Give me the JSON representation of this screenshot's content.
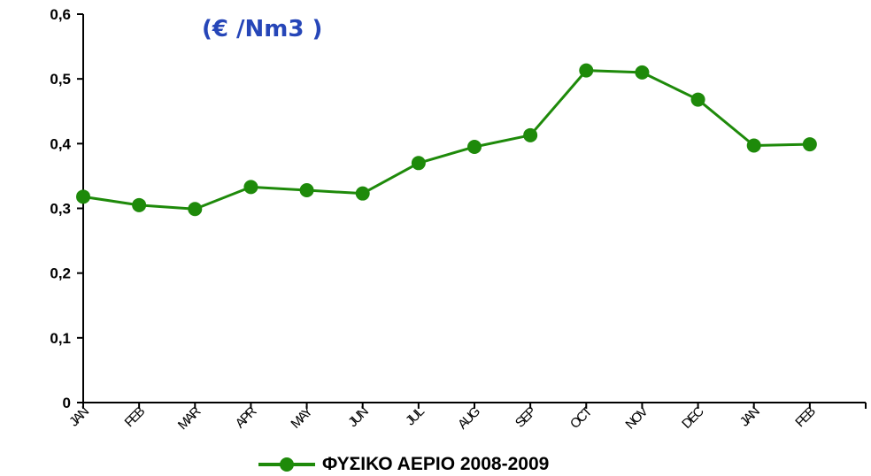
{
  "chart_data": {
    "type": "line",
    "title": "(€ /Nm3 )",
    "categories": [
      "JAN",
      "FEB",
      "MAR",
      "APR",
      "MAY",
      "JUN",
      "JUL",
      "AUG",
      "SEP",
      "OCT",
      "NOV",
      "DEC",
      "JAN",
      "FEB"
    ],
    "series": [
      {
        "name": "ΦΥΣΙΚΟ ΑΕΡΙΟ 2008-2009",
        "values": [
          0.318,
          0.305,
          0.299,
          0.333,
          0.328,
          0.323,
          0.37,
          0.395,
          0.413,
          0.513,
          0.51,
          0.468,
          0.397,
          0.399
        ],
        "color": "#1e8a0a"
      }
    ],
    "ylim": [
      0,
      0.6
    ],
    "yticks": [
      {
        "value": 0,
        "label": "0"
      },
      {
        "value": 0.1,
        "label": "0,1"
      },
      {
        "value": 0.2,
        "label": "0,2"
      },
      {
        "value": 0.3,
        "label": "0,3"
      },
      {
        "value": 0.4,
        "label": "0,4"
      },
      {
        "value": 0.5,
        "label": "0,5"
      },
      {
        "value": 0.6,
        "label": "0,6"
      }
    ],
    "grid": false,
    "legend": "bottom"
  },
  "colors": {
    "title": "#2646b8",
    "series": "#1e8a0a",
    "axis": "#000000"
  }
}
